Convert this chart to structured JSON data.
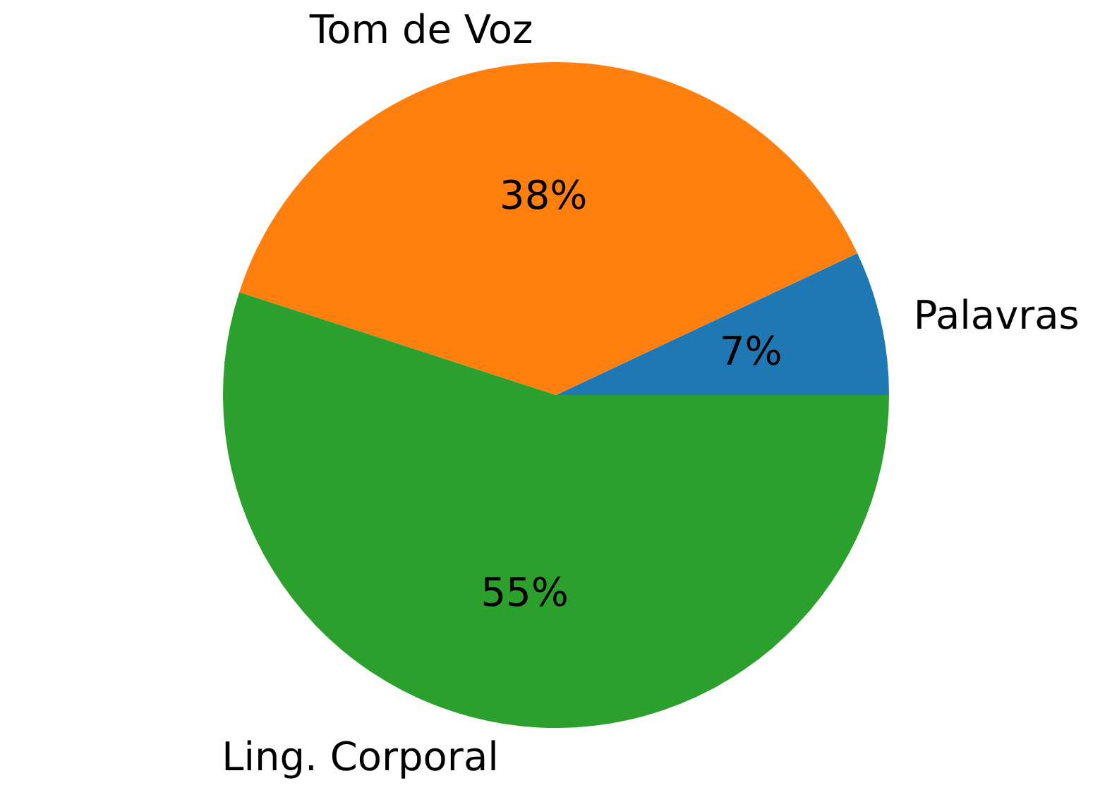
{
  "chart_data": {
    "type": "pie",
    "categories": [
      "Palavras",
      "Tom de Voz",
      "Ling. Corporal"
    ],
    "values": [
      7,
      38,
      55
    ],
    "colors": [
      "#1f77b4",
      "#ff7f0e",
      "#2ca02c"
    ],
    "value_labels": [
      "7%",
      "38%",
      "55%"
    ]
  }
}
